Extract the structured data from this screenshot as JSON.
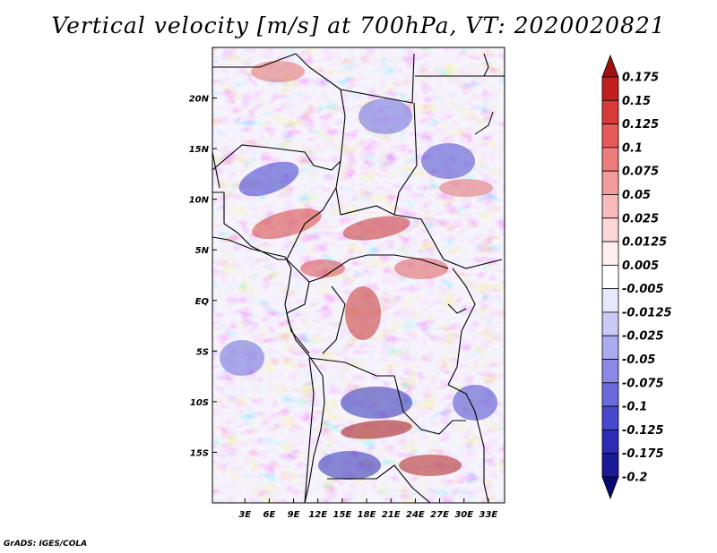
{
  "title": "Vertical velocity [m/s] at 700hPa, VT: 2020020821",
  "credit": "GrADS: IGES/COLA",
  "map": {
    "lon_range": [
      -1,
      35
    ],
    "lat_range": [
      -20,
      25
    ],
    "lat_labels": [
      "20N",
      "15N",
      "10N",
      "5N",
      "EQ",
      "5S",
      "10S",
      "15S"
    ],
    "lon_labels": [
      "3E",
      "6E",
      "9E",
      "12E",
      "15E",
      "18E",
      "21E",
      "24E",
      "27E",
      "30E",
      "33E"
    ]
  },
  "colorbar": {
    "levels": [
      "0.175",
      "0.15",
      "0.125",
      "0.1",
      "0.075",
      "0.05",
      "0.025",
      "0.0125",
      "0.005",
      "-0.005",
      "-0.0125",
      "-0.025",
      "-0.05",
      "-0.075",
      "-0.1",
      "-0.125",
      "-0.175",
      "-0.2"
    ],
    "colors": [
      "#a01010",
      "#c02020",
      "#d83a3a",
      "#e65a5a",
      "#ee7c7c",
      "#f39c9c",
      "#f8baba",
      "#fcd6d6",
      "#fff0f0",
      "#ffffff",
      "#e8e8fb",
      "#cacaf5",
      "#aaaaef",
      "#8a8ae6",
      "#6a6adc",
      "#4848cc",
      "#2c2cb4",
      "#1a1a96",
      "#0a0a6e"
    ]
  }
}
